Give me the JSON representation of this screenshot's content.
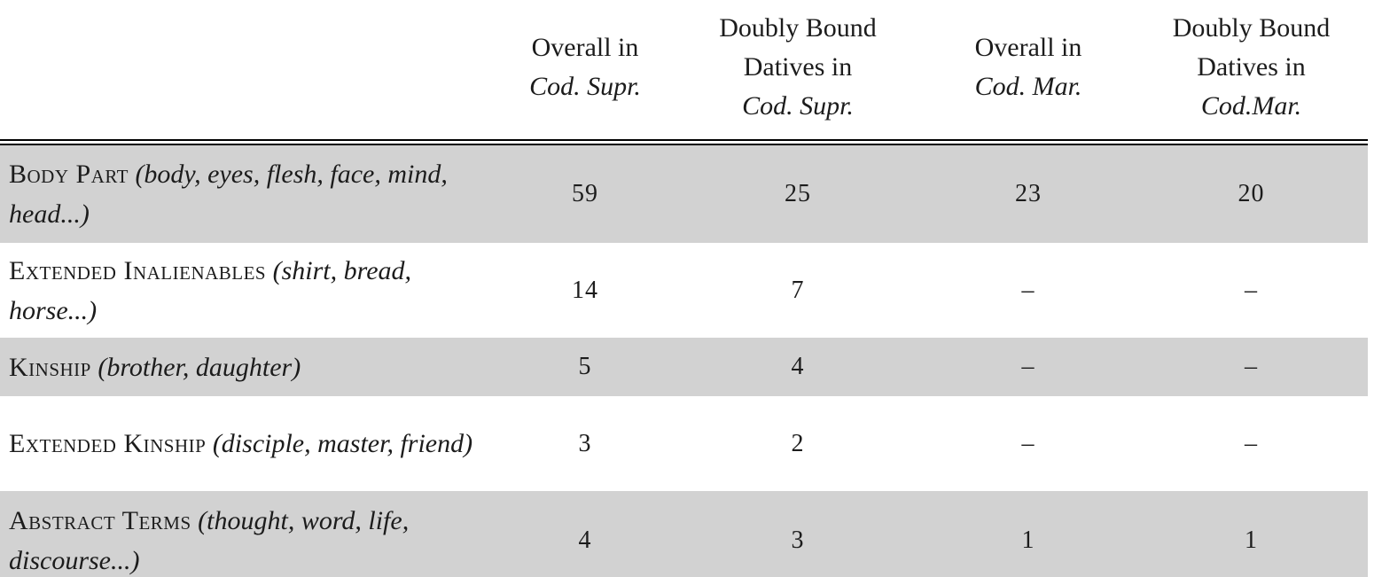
{
  "table": {
    "columns": [
      {
        "line1": "Overall in",
        "codex": "Cod. Supr."
      },
      {
        "line1": "Doubly Bound",
        "line2": "Datives in",
        "codex": "Cod. Supr."
      },
      {
        "line1": "Overall in",
        "codex": "Cod. Mar."
      },
      {
        "line1": "Doubly Bound",
        "line2": "Datives in",
        "codex": "Cod.Mar."
      }
    ],
    "rows": [
      {
        "category": "Body Part",
        "examples": "(body, eyes, flesh, face, mind, head...)",
        "values": [
          "59",
          "25",
          "23",
          "20"
        ]
      },
      {
        "category": "Extended Inalienables",
        "examples": "(shirt, bread, horse...)",
        "values": [
          "14",
          "7",
          "–",
          "–"
        ]
      },
      {
        "category": "Kinship",
        "examples": "(brother, daughter)",
        "values": [
          "5",
          "4",
          "–",
          "–"
        ]
      },
      {
        "category": "Extended Kinship",
        "examples": "(disciple, master, friend)",
        "values": [
          "3",
          "2",
          "–",
          "–"
        ]
      },
      {
        "category": "Abstract Terms",
        "examples": "(thought, word, life, discourse...)",
        "values": [
          "4",
          "3",
          "1",
          "1"
        ]
      }
    ]
  },
  "colors": {
    "row_shade": "#d2d2d2",
    "text": "#1c1c1c",
    "rule": "#000000"
  }
}
